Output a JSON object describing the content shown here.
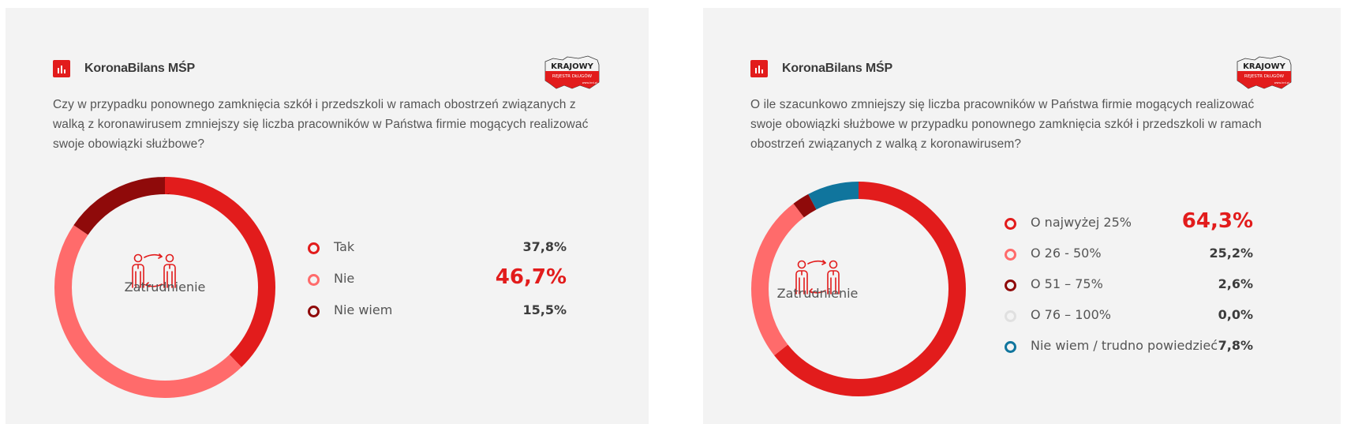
{
  "panels": [
    {
      "brand": {
        "title": "KoronaBilans MŚP",
        "icon": "bar-chart-icon"
      },
      "logo": {
        "line1": "KRAJOWY",
        "line2": "REJESTR DŁUGÓW",
        "line3": "www.krd.pl"
      },
      "question": "Czy w przypadku ponownego zamknięcia szkół i przedszkoli w ramach obostrzeń związanych z walką z koronawirusem zmniejszy się liczba pracowników w Państwa firmie mogących realizować swoje obowiązki służbowe?",
      "center_label": "Zatrudnienie",
      "center_icon": "employee-exchange-icon",
      "legend": [
        {
          "label": "Tak",
          "value": "37,8%",
          "color": "#e21c1c",
          "highlight": false
        },
        {
          "label": "Nie",
          "value": "46,7%",
          "color": "#ff6b6b",
          "highlight": true
        },
        {
          "label": "Nie wiem",
          "value": "15,5%",
          "color": "#8f0a0a",
          "highlight": false
        }
      ]
    },
    {
      "brand": {
        "title": "KoronaBilans MŚP",
        "icon": "bar-chart-icon"
      },
      "logo": {
        "line1": "KRAJOWY",
        "line2": "REJESTR DŁUGÓW",
        "line3": "www.krd.pl"
      },
      "question": "O ile szacunkowo zmniejszy się liczba pracowników w Państwa firmie mogących realizować swoje obowiązki służbowe w przypadku ponownego zamknięcia szkół i przedszkoli w ramach obostrzeń związanych z walką z koronawirusem?",
      "center_label": "Zatrudnienie",
      "center_icon": "employee-exchange-icon",
      "legend": [
        {
          "label": "O najwyżej 25%",
          "value": "64,3%",
          "color": "#e21c1c",
          "highlight": true
        },
        {
          "label": "O 26 -  50%",
          "value": "25,2%",
          "color": "#ff6b6b",
          "highlight": false
        },
        {
          "label": "O 51 – 75%",
          "value": "2,6%",
          "color": "#8f0a0a",
          "highlight": false
        },
        {
          "label": "O 76 – 100%",
          "value": "0,0%",
          "color": "#e0e0e0",
          "highlight": false
        },
        {
          "label": "Nie wiem / trudno powiedzieć",
          "value": "7,8%",
          "color": "#10759d",
          "highlight": false
        }
      ]
    }
  ],
  "chart_data": [
    {
      "type": "pie",
      "donut": true,
      "title": "Czy w przypadku ponownego zamknięcia szkół i przedszkoli w ramach obostrzeń związanych z walką z koronawirusem zmniejszy się liczba pracowników w Państwa firmie mogących realizować swoje obowiązki służbowe?",
      "center_label": "Zatrudnienie",
      "categories": [
        "Tak",
        "Nie",
        "Nie wiem"
      ],
      "values": [
        37.8,
        46.7,
        15.5
      ],
      "colors": [
        "#e21c1c",
        "#ff6b6b",
        "#8f0a0a"
      ],
      "unit": "%",
      "start_angle": "12 o'clock, clockwise",
      "legend_position": "right"
    },
    {
      "type": "pie",
      "donut": true,
      "title": "O ile szacunkowo zmniejszy się liczba pracowników w Państwa firmie mogących realizować swoje obowiązki służbowe w przypadku ponownego zamknięcia szkół i przedszkoli w ramach obostrzeń związanych z walką z koronawirusem?",
      "center_label": "Zatrudnienie",
      "categories": [
        "O najwyżej 25%",
        "O 26 - 50%",
        "O 51 – 75%",
        "O 76 – 100%",
        "Nie wiem / trudno powiedzieć"
      ],
      "values": [
        64.3,
        25.2,
        2.6,
        0.0,
        7.8
      ],
      "colors": [
        "#e21c1c",
        "#ff6b6b",
        "#8f0a0a",
        "#e0e0e0",
        "#10759d"
      ],
      "unit": "%",
      "start_angle": "12 o'clock, clockwise",
      "legend_position": "right"
    }
  ]
}
